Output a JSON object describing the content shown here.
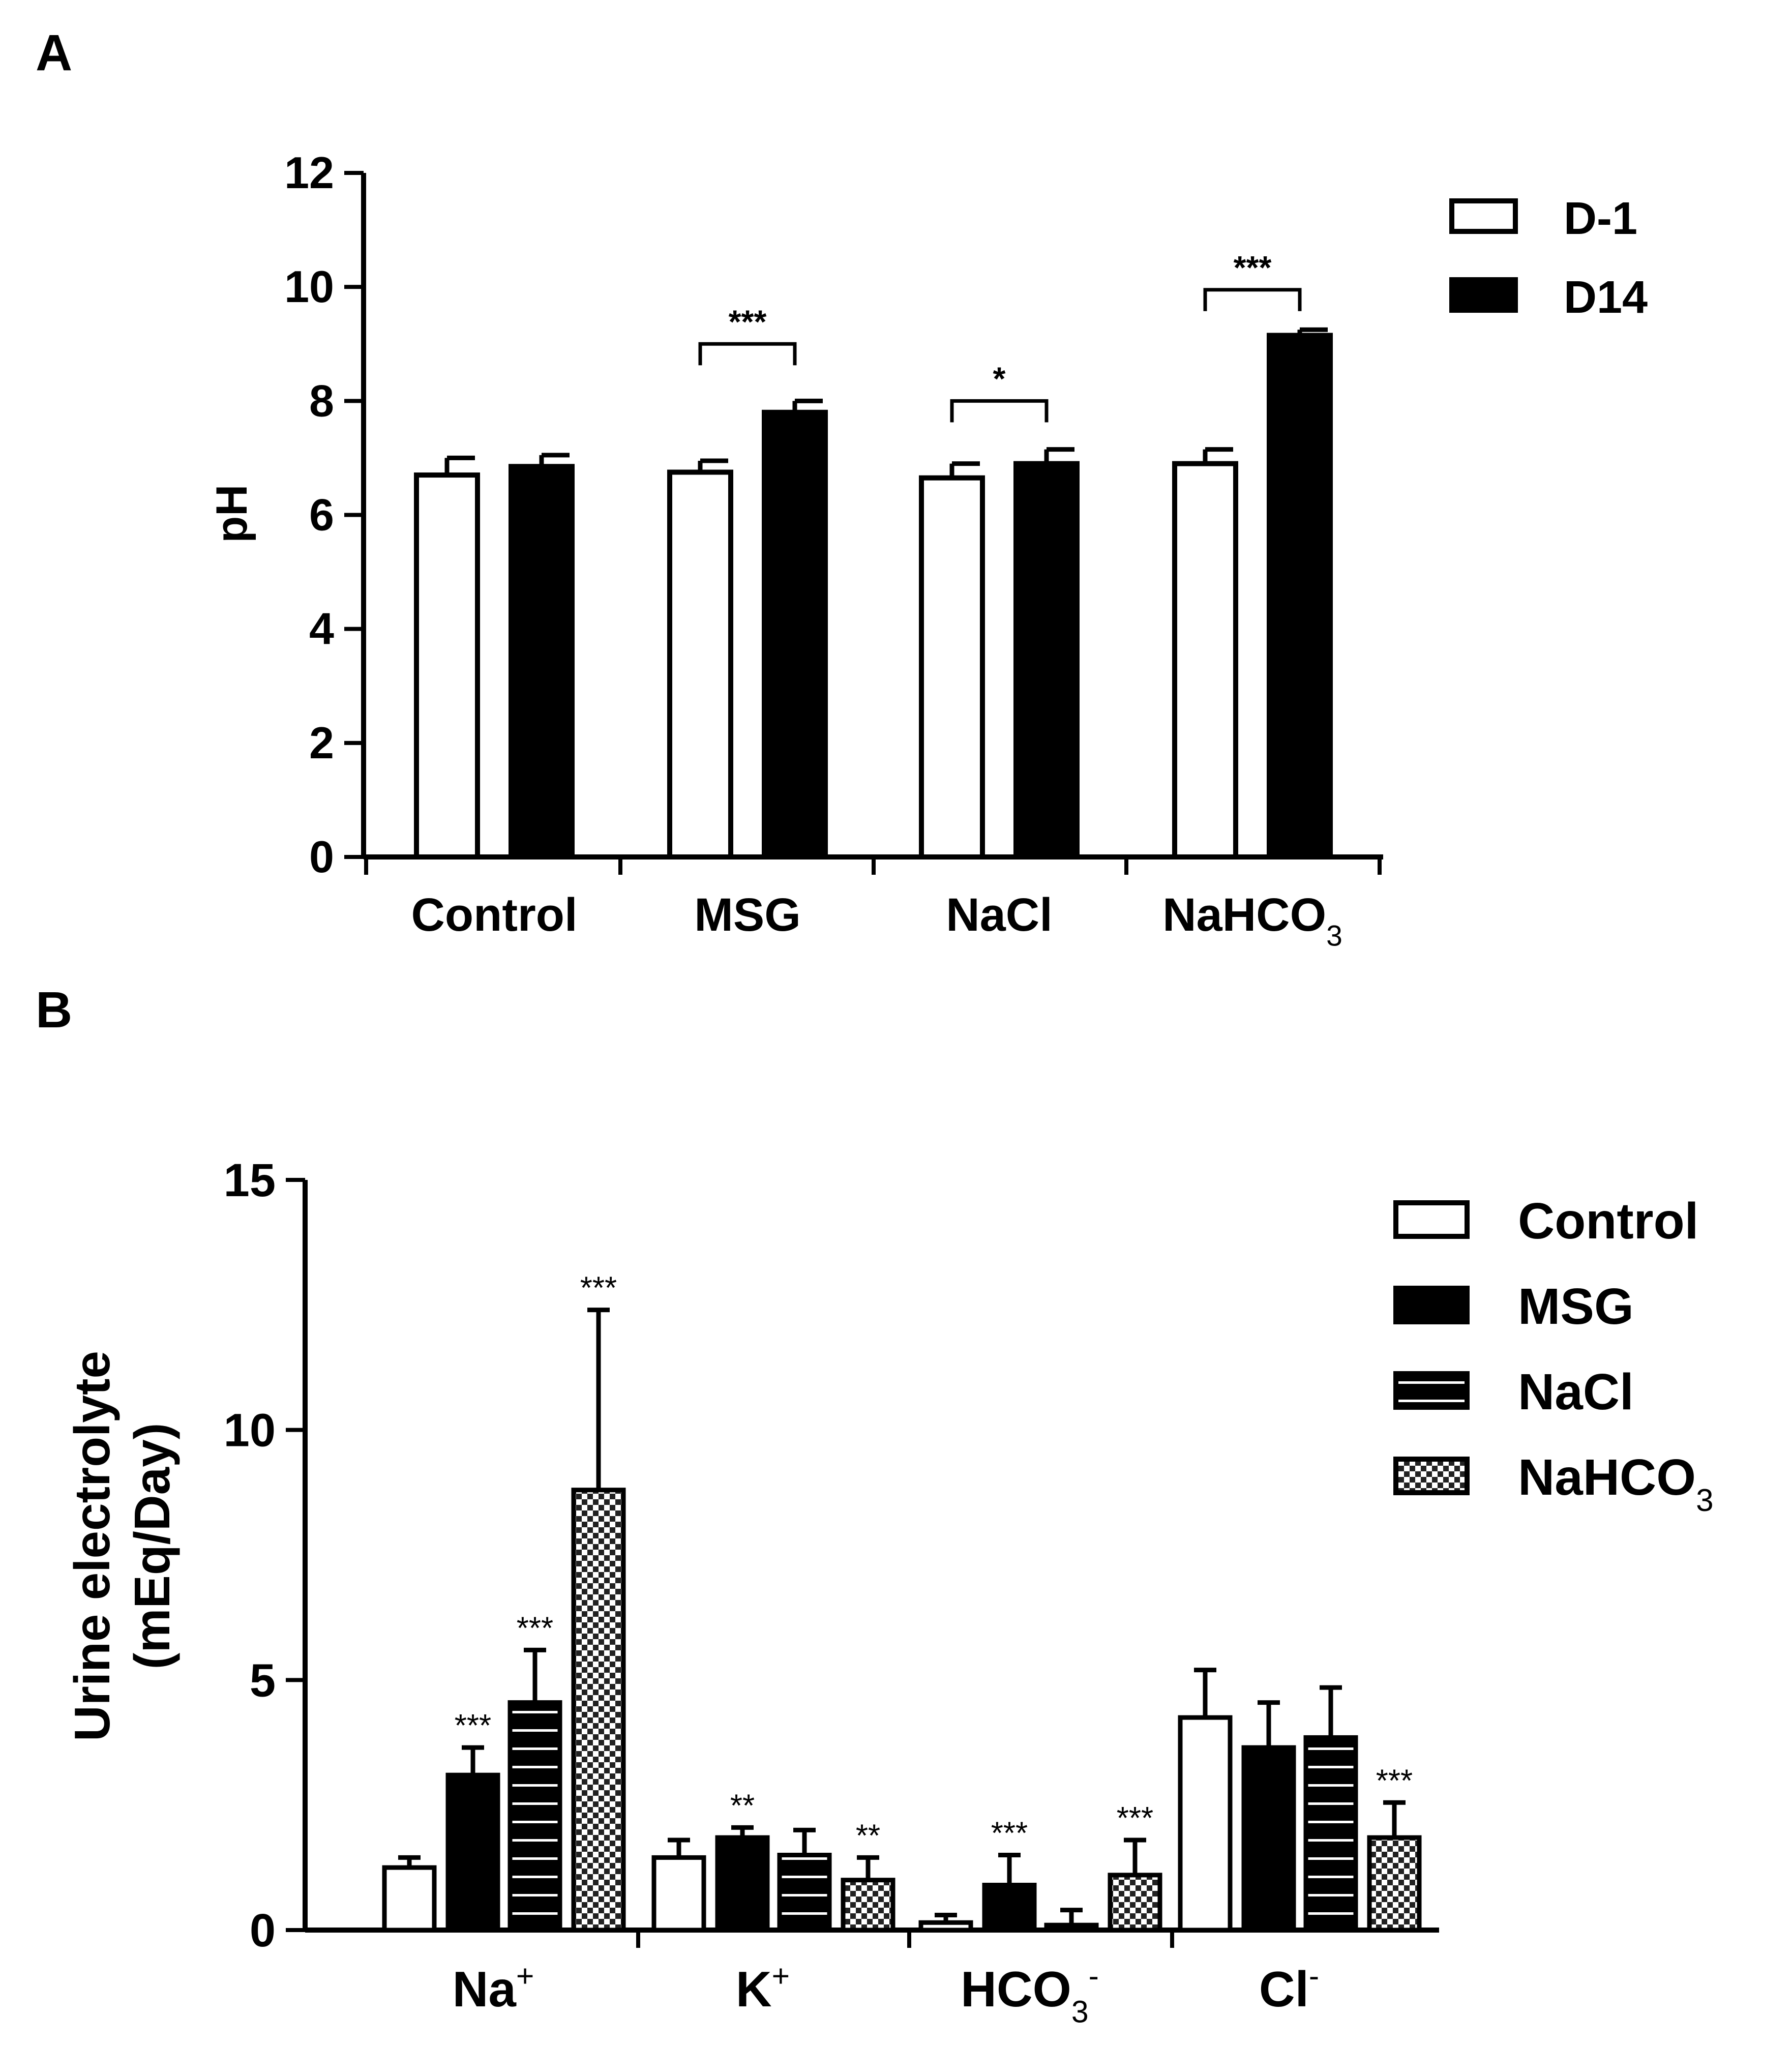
{
  "chart_data": [
    {
      "panel_label": "A",
      "type": "bar",
      "title": "",
      "xlabel": "",
      "ylabel": "pH",
      "ylim": [
        0,
        12
      ],
      "yticks": [
        0,
        2,
        4,
        6,
        8,
        10,
        12
      ],
      "categories": [
        {
          "text": "Control",
          "sub": ""
        },
        {
          "text": "MSG",
          "sub": ""
        },
        {
          "text": "NaCl",
          "sub": ""
        },
        {
          "text": "NaHCO",
          "sub": "3"
        }
      ],
      "series": [
        {
          "name": "D-1",
          "color": "#ffffff",
          "pattern": "open",
          "values": [
            6.7,
            6.75,
            6.65,
            6.9
          ],
          "errors": [
            0.3,
            0.2,
            0.25,
            0.25
          ]
        },
        {
          "name": "D14",
          "color": "#000000",
          "pattern": "solid",
          "values": [
            6.85,
            7.8,
            6.9,
            9.15
          ],
          "errors": [
            0.2,
            0.2,
            0.25,
            0.1
          ]
        }
      ],
      "significance": [
        {
          "group": 1,
          "label": "***",
          "level": 9.0
        },
        {
          "group": 2,
          "label": "*",
          "level": 8.0
        },
        {
          "group": 3,
          "label": "***",
          "level": 9.95
        }
      ],
      "legend": {
        "position": "top-right",
        "entries": [
          "D-1",
          "D14"
        ]
      }
    },
    {
      "panel_label": "B",
      "type": "bar",
      "title": "",
      "xlabel": "",
      "ylabel": [
        "Urine electrolyte",
        "(mEq/Day)"
      ],
      "ylim": [
        0,
        15
      ],
      "yticks": [
        0,
        5,
        10,
        15
      ],
      "categories": [
        {
          "text": "Na",
          "sup": "+",
          "sub": ""
        },
        {
          "text": "K",
          "sup": "+",
          "sub": ""
        },
        {
          "text": "HCO",
          "sup": "-",
          "sub": "3"
        },
        {
          "text": "Cl",
          "sup": "-",
          "sub": ""
        }
      ],
      "series": [
        {
          "name": "Control",
          "sub": "",
          "pattern": "open",
          "values": [
            1.25,
            1.45,
            0.15,
            4.25
          ],
          "errors": [
            0.2,
            0.35,
            0.15,
            0.95
          ],
          "stars": [
            "",
            "",
            "",
            ""
          ]
        },
        {
          "name": "MSG",
          "sub": "",
          "pattern": "solid",
          "values": [
            3.1,
            1.85,
            0.9,
            3.65
          ],
          "errors": [
            0.55,
            0.2,
            0.6,
            0.9
          ],
          "stars": [
            "***",
            "**",
            "***",
            ""
          ]
        },
        {
          "name": "NaCl",
          "sub": "",
          "pattern": "hstripe",
          "values": [
            4.55,
            1.5,
            0.1,
            3.85
          ],
          "errors": [
            1.05,
            0.5,
            0.3,
            1.0
          ],
          "stars": [
            "***",
            "",
            "",
            ""
          ]
        },
        {
          "name": "NaHCO",
          "sub": "3",
          "pattern": "check",
          "values": [
            8.8,
            1.0,
            1.1,
            1.85
          ],
          "errors": [
            3.6,
            0.45,
            0.7,
            0.7
          ],
          "stars": [
            "***",
            "**",
            "***",
            "***"
          ]
        }
      ],
      "legend": {
        "position": "top-right",
        "entries": [
          "Control",
          "MSG",
          "NaCl",
          "NaHCO3"
        ]
      }
    }
  ]
}
